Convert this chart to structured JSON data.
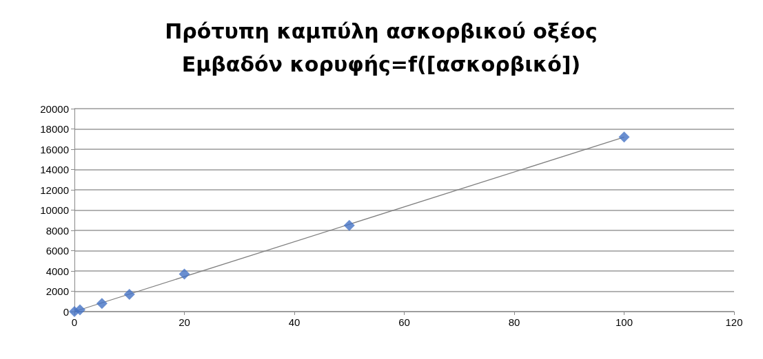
{
  "chart_data": {
    "type": "scatter",
    "title": "Πρότυπη καμπύλη ασκορβικού οξέος\nΕμβαδόν κορυφής=f([ασκορβικό])",
    "xlim": [
      0,
      120
    ],
    "xticks": [
      0,
      20,
      40,
      60,
      80,
      100,
      120
    ],
    "ylim": [
      0,
      20000
    ],
    "yticks": [
      0,
      2000,
      4000,
      6000,
      8000,
      10000,
      12000,
      14000,
      16000,
      18000,
      20000
    ],
    "grid": "y",
    "marker": "diamond",
    "series": [
      {
        "color": "#4472c4",
        "x": [
          0,
          1,
          5,
          10,
          20,
          50,
          100
        ],
        "values": [
          0,
          170,
          800,
          1700,
          3700,
          8500,
          17200
        ]
      },
      {
        "type": "line",
        "color": "#808080",
        "marker": "none",
        "x": [
          0,
          100
        ],
        "values": [
          0,
          17200
        ]
      }
    ]
  }
}
